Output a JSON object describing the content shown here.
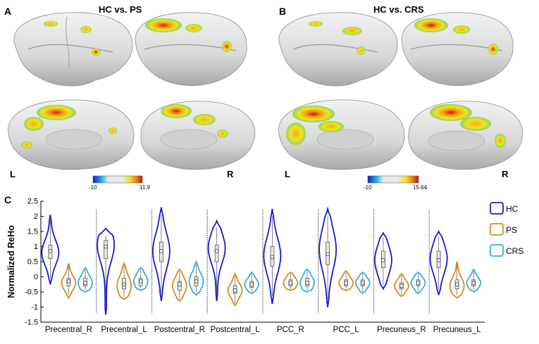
{
  "panels": {
    "a": {
      "letter": "A",
      "title": "HC vs. PS",
      "left_label": "L",
      "right_label": "R",
      "colorbar": {
        "min": "-10",
        "max": "11.9"
      }
    },
    "b": {
      "letter": "B",
      "title": "HC vs. CRS",
      "left_label": "L",
      "right_label": "R",
      "colorbar": {
        "min": "-10",
        "max": "15.64"
      }
    },
    "c": {
      "letter": "C"
    }
  },
  "colors": {
    "HC": "#1a1acc",
    "PS": "#d98a1a",
    "CRS": "#3aaad8"
  },
  "chart_data": {
    "type": "violin",
    "ylabel": "Normalized ReHo",
    "ylim": [
      -1.5,
      2.5
    ],
    "yticks": [
      "-1.5",
      "-1",
      "-0.5",
      "0",
      "0.5",
      "1",
      "1.5",
      "2",
      "2.5"
    ],
    "categories": [
      "Precentral_R",
      "Precentral_L",
      "Postcentral_R",
      "Postcentral_L",
      "PCC_R",
      "PCC_L",
      "Precuneus_R",
      "Precuneus_L"
    ],
    "legend": [
      "HC",
      "PS",
      "CRS"
    ],
    "legend_position": "right",
    "series": [
      {
        "name": "HC",
        "stats": [
          {
            "min": -0.25,
            "max": 2.05,
            "median": 0.85,
            "q1": 0.6,
            "q3": 1.05,
            "mode": 0.8
          },
          {
            "min": -1.25,
            "max": 1.6,
            "median": 1.0,
            "q1": 0.6,
            "q3": 1.2,
            "mode": 1.05
          },
          {
            "min": -0.8,
            "max": 2.3,
            "median": 0.85,
            "q1": 0.5,
            "q3": 1.15,
            "mode": 0.85
          },
          {
            "min": -0.8,
            "max": 1.85,
            "median": 0.85,
            "q1": 0.5,
            "q3": 1.05,
            "mode": 0.95
          },
          {
            "min": -0.9,
            "max": 2.25,
            "median": 0.65,
            "q1": 0.35,
            "q3": 1.0,
            "mode": 0.7
          },
          {
            "min": -1.0,
            "max": 2.25,
            "median": 0.75,
            "q1": 0.4,
            "q3": 1.15,
            "mode": 0.9
          },
          {
            "min": -0.4,
            "max": 1.45,
            "median": 0.55,
            "q1": 0.3,
            "q3": 0.85,
            "mode": 0.55
          },
          {
            "min": -0.6,
            "max": 1.5,
            "median": 0.55,
            "q1": 0.3,
            "q3": 0.85,
            "mode": 0.6
          }
        ]
      },
      {
        "name": "PS",
        "stats": [
          {
            "min": -0.7,
            "max": 0.45,
            "median": -0.15,
            "q1": -0.3,
            "q3": -0.05,
            "mode": -0.2
          },
          {
            "min": -0.75,
            "max": 0.45,
            "median": -0.25,
            "q1": -0.4,
            "q3": -0.05,
            "mode": -0.3
          },
          {
            "min": -0.8,
            "max": 0.25,
            "median": -0.25,
            "q1": -0.45,
            "q3": -0.15,
            "mode": -0.3
          },
          {
            "min": -0.95,
            "max": 0.1,
            "median": -0.45,
            "q1": -0.55,
            "q3": -0.3,
            "mode": -0.45
          },
          {
            "min": -0.45,
            "max": 0.15,
            "median": -0.2,
            "q1": -0.3,
            "q3": -0.1,
            "mode": -0.2
          },
          {
            "min": -0.45,
            "max": 0.2,
            "median": -0.2,
            "q1": -0.3,
            "q3": -0.1,
            "mode": -0.2
          },
          {
            "min": -0.65,
            "max": 0.1,
            "median": -0.3,
            "q1": -0.4,
            "q3": -0.2,
            "mode": -0.3
          },
          {
            "min": -0.7,
            "max": 0.5,
            "median": -0.25,
            "q1": -0.4,
            "q3": -0.1,
            "mode": -0.3
          }
        ]
      },
      {
        "name": "CRS",
        "stats": [
          {
            "min": -0.5,
            "max": 0.3,
            "median": -0.2,
            "q1": -0.3,
            "q3": -0.05,
            "mode": -0.2
          },
          {
            "min": -0.45,
            "max": 0.3,
            "median": -0.15,
            "q1": -0.3,
            "q3": -0.05,
            "mode": -0.15
          },
          {
            "min": -0.6,
            "max": 0.5,
            "median": -0.15,
            "q1": -0.3,
            "q3": 0.0,
            "mode": -0.15
          },
          {
            "min": -0.55,
            "max": 0.15,
            "median": -0.25,
            "q1": -0.35,
            "q3": -0.15,
            "mode": -0.25
          },
          {
            "min": -0.5,
            "max": 0.25,
            "median": -0.2,
            "q1": -0.3,
            "q3": -0.05,
            "mode": -0.2
          },
          {
            "min": -0.55,
            "max": 0.15,
            "median": -0.2,
            "q1": -0.3,
            "q3": -0.1,
            "mode": -0.2
          },
          {
            "min": -0.55,
            "max": 0.15,
            "median": -0.2,
            "q1": -0.3,
            "q3": -0.1,
            "mode": -0.2
          },
          {
            "min": -0.5,
            "max": 0.25,
            "median": -0.2,
            "q1": -0.3,
            "q3": -0.1,
            "mode": -0.2
          }
        ]
      }
    ]
  }
}
